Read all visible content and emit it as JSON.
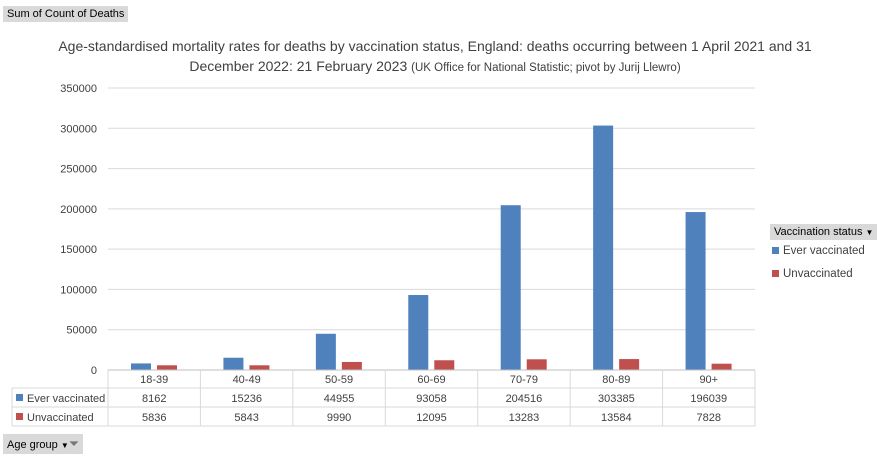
{
  "field_button": "Sum of Count of Deaths",
  "axis_button": "Age group",
  "legend_button": "Vaccination status",
  "chart_data": {
    "type": "bar",
    "title": "Age-standardised mortality rates for deaths by vaccination status, England: deaths occurring between 1 April 2021 and 31 December 2022: 21 February 2023",
    "subtitle": "(UK Office for National Statistic; pivot by Jurij Llewro)",
    "categories": [
      "18-39",
      "40-49",
      "50-59",
      "60-69",
      "70-79",
      "80-89",
      "90+"
    ],
    "series": [
      {
        "name": "Ever vaccinated",
        "color": "#4f81bd",
        "values": [
          8162,
          15236,
          44955,
          93058,
          204516,
          303385,
          196039
        ]
      },
      {
        "name": "Unvaccinated",
        "color": "#c0504d",
        "values": [
          5836,
          5843,
          9990,
          12095,
          13283,
          13584,
          7828
        ]
      }
    ],
    "yticks": [
      0,
      50000,
      100000,
      150000,
      200000,
      250000,
      300000,
      350000
    ],
    "ylim": [
      0,
      350000
    ],
    "grid": true,
    "legend_placement": "right",
    "data_table": true
  }
}
